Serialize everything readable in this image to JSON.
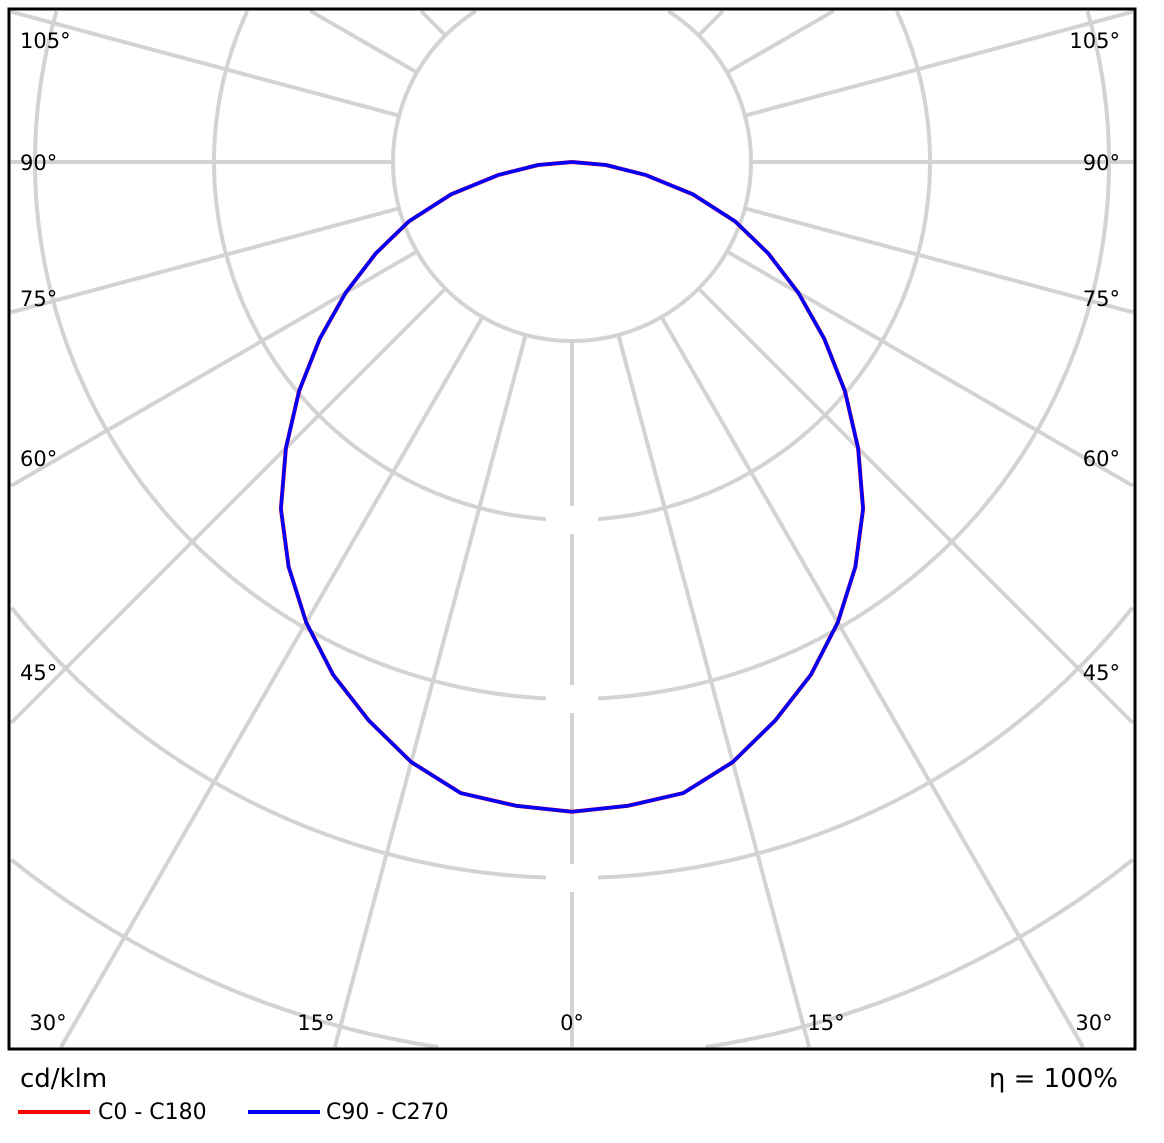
{
  "chart_data": {
    "type": "polar-line",
    "unit_label": "cd/klm",
    "efficiency_label": "η = 100%",
    "grid": true,
    "angle_step_deg": 15,
    "left_angle_labels": [
      "105°",
      "90°",
      "75°",
      "60°",
      "45°"
    ],
    "right_angle_labels": [
      "105°",
      "90°",
      "75°",
      "60°",
      "45°"
    ],
    "bottom_angle_labels": [
      "30°",
      "15°",
      "0°",
      "15°",
      "30°"
    ],
    "angles_deg": [
      0,
      5,
      10,
      15,
      20,
      25,
      30,
      35,
      40,
      45,
      50,
      55,
      60,
      65,
      70,
      75,
      80,
      85,
      90
    ],
    "series": [
      {
        "name": "C0 - C180",
        "color": "#ff0000",
        "values": [
          363,
          361,
          358,
          347,
          332,
          316,
          297,
          276,
          253,
          226,
          199,
          172,
          146,
          121,
          97,
          70,
          42,
          19,
          0
        ]
      },
      {
        "name": "C90 - C270",
        "color": "#0000ff",
        "values": [
          363,
          361,
          358,
          347,
          332,
          316,
          297,
          276,
          253,
          226,
          199,
          172,
          146,
          121,
          97,
          70,
          42,
          19,
          0
        ]
      }
    ],
    "grid_color": "#d3d3d3"
  }
}
